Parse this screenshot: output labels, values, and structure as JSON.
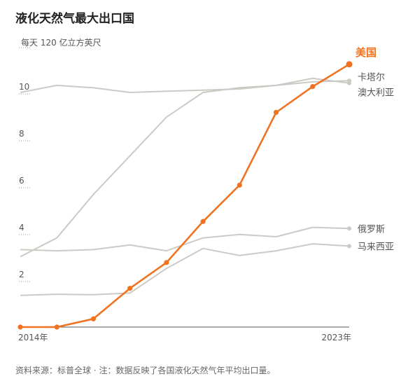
{
  "title": "液化天然气最大出口国",
  "unit_label": "每天 120 亿立方英尺",
  "footnote": "资料来源：标普全球 · 注：数据反映了各国液化天然气年平均出口量。",
  "colors": {
    "highlight": "#f07322",
    "other": "#cccac4",
    "axis": "#9a9a9a"
  },
  "chart_data": {
    "type": "line",
    "title": "液化天然气最大出口国",
    "ylabel": "每天 120 亿立方英尺",
    "xlabel": "",
    "x": [
      2014,
      2015,
      2016,
      2017,
      2018,
      2019,
      2020,
      2021,
      2022,
      2023
    ],
    "x_tick_labels": [
      {
        "x": 2014,
        "label": "2014年"
      },
      {
        "x": 2023,
        "label": "2023年"
      }
    ],
    "y_ticks": [
      2,
      4,
      6,
      8,
      10
    ],
    "ylim": [
      0,
      11.5
    ],
    "grid": false,
    "series": [
      {
        "name": "美国",
        "highlight": true,
        "values": [
          0.0,
          0.0,
          0.35,
          1.65,
          2.75,
          4.5,
          6.05,
          9.15,
          10.25,
          11.2
        ]
      },
      {
        "name": "卡塔尔",
        "highlight": false,
        "values": [
          10.0,
          10.3,
          10.2,
          10.0,
          10.05,
          10.1,
          10.15,
          10.3,
          10.45,
          10.5
        ]
      },
      {
        "name": "澳大利亚",
        "highlight": false,
        "values": [
          3.0,
          3.8,
          5.65,
          7.3,
          8.95,
          10.0,
          10.2,
          10.3,
          10.6,
          10.4
        ]
      },
      {
        "name": "俄罗斯",
        "highlight": false,
        "values": [
          3.3,
          3.25,
          3.3,
          3.5,
          3.25,
          3.8,
          3.95,
          3.85,
          4.25,
          4.2
        ]
      },
      {
        "name": "马来西亚",
        "highlight": false,
        "values": [
          1.35,
          1.4,
          1.38,
          1.45,
          2.5,
          3.35,
          3.05,
          3.25,
          3.55,
          3.45
        ]
      }
    ]
  }
}
